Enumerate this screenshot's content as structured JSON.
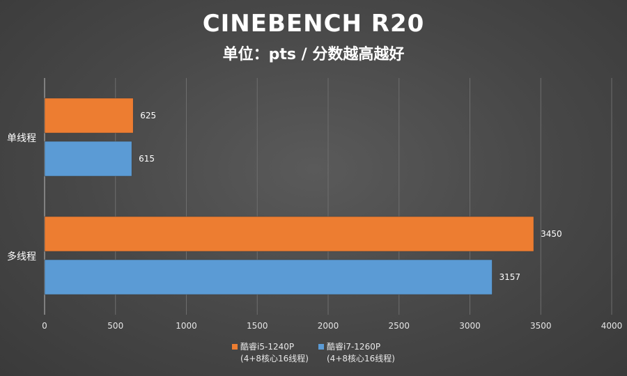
{
  "chart_data": {
    "type": "bar",
    "orientation": "horizontal",
    "title": "CINEBENCH R20",
    "subtitle": "单位：pts / 分数越高越好",
    "categories": [
      "单线程",
      "多线程"
    ],
    "series": [
      {
        "name": "酷睿i5-1240P",
        "name_line2": "(4+8核心16线程)",
        "color": "#ed7d31",
        "values": [
          625,
          3450
        ]
      },
      {
        "name": "酷睿i7-1260P",
        "name_line2": "(4+8核心16线程)",
        "color": "#5b9bd5",
        "values": [
          615,
          3157
        ]
      }
    ],
    "xlim": [
      0,
      4000
    ],
    "xticks": [
      0,
      500,
      1000,
      1500,
      2000,
      2500,
      3000,
      3500,
      4000
    ],
    "grid": true,
    "legend_position": "bottom",
    "data_labels": true
  }
}
